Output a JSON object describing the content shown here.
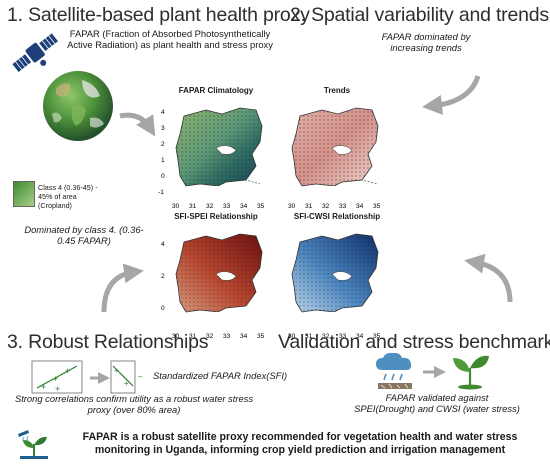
{
  "section1": {
    "heading": "1. Satellite-based plant health proxy",
    "fapar_text": "FAPAR (Fraction of Absorbed Photosynthetically Active Radiation) as plant health and stress proxy",
    "legend_label": "Class 4 (0.36-45) - 45% of area (Cropland)",
    "dominated_text": "Dominated by class 4. (0.36-0.45 FAPAR)"
  },
  "section2": {
    "heading": "2. Spatial variability and trends",
    "text": "FAPAR dominated by increasing trends"
  },
  "section3": {
    "heading": "3. Robust Relationships",
    "sfi_label": "Standardized FAPAR Index(SFI)",
    "text": "Strong correlations confirm utility as a robust water stress proxy (over 80% area)"
  },
  "section4": {
    "heading": "Validation and stress benchmarks",
    "text": "FAPAR validated against SPEI(Drought) and CWSI (water stress)"
  },
  "maps": {
    "titles": [
      "FAPAR Climatology",
      "Trends",
      "SFI-SPEI Relationship",
      "SFI-CWSI Relationship"
    ],
    "yticks": [
      "4",
      "3",
      "2",
      "1",
      "0",
      "-1"
    ],
    "yticks_bottom": [
      "4",
      "2",
      "0"
    ],
    "xticks": [
      "30",
      "31",
      "32",
      "33",
      "34",
      "35"
    ]
  },
  "footer": {
    "text": "FAPAR is a robust satellite proxy recommended for vegetation health and water stress monitoring in Uganda, informing crop yield prediction and irrigation management"
  },
  "colors": {
    "arrow": "#a6a6a6",
    "green_dark": "#2e7d32",
    "green_light": "#a8d08d"
  }
}
